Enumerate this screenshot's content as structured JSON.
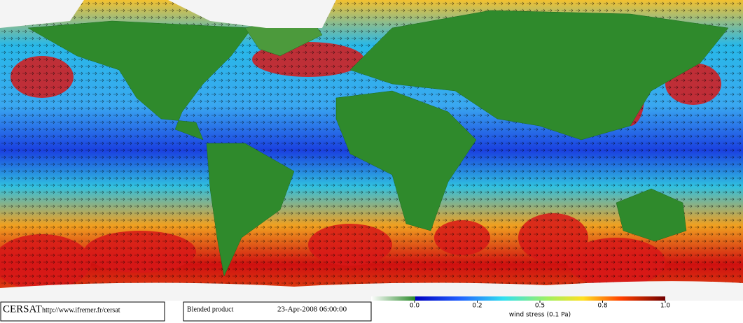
{
  "footer": {
    "logo": "CERSAT",
    "url": "http://www.ifremer.fr/cersat",
    "product": "Blended product",
    "date": "23-Apr-2008 06:00:00"
  },
  "colorbar": {
    "ticks": [
      {
        "value": 0,
        "label": "0.0"
      },
      {
        "value": 0.2,
        "label": "0.2"
      },
      {
        "value": 0.5,
        "label": "0.5"
      },
      {
        "value": 0.8,
        "label": "0.8"
      },
      {
        "value": 1,
        "label": "1.0"
      }
    ],
    "label": "wind stress (0.1 Pa)"
  }
}
